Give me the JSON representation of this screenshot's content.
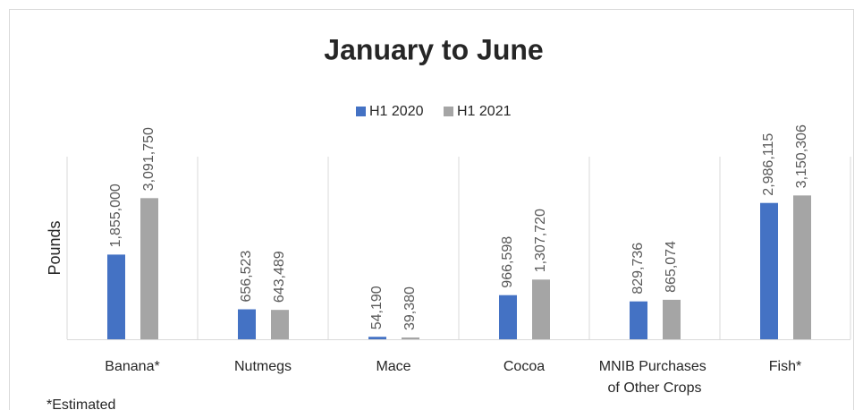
{
  "chart_data": {
    "type": "bar",
    "title": "January to June",
    "y_label": "Pounds",
    "categories": [
      "Banana*",
      "Nutmegs",
      "Mace",
      "Cocoa",
      "MNIB Purchases of Other Crops",
      "Fish*"
    ],
    "series": [
      {
        "name": "H1 2020",
        "color": "#4472c4",
        "values": [
          1855000,
          656523,
          54190,
          966598,
          829736,
          2986115
        ],
        "value_labels": [
          "1,855,000",
          "656,523",
          "54,190",
          "966,598",
          "829,736",
          "2,986,115"
        ]
      },
      {
        "name": "H1 2021",
        "color": "#a5a5a5",
        "values": [
          3091750,
          643489,
          39380,
          1307720,
          865074,
          3150306
        ],
        "value_labels": [
          "3,091,750",
          "643,489",
          "39,380",
          "1,307,720",
          "865,074",
          "3,150,306"
        ]
      }
    ],
    "ylim": [
      0,
      4000000
    ],
    "footnote": "*Estimated"
  }
}
